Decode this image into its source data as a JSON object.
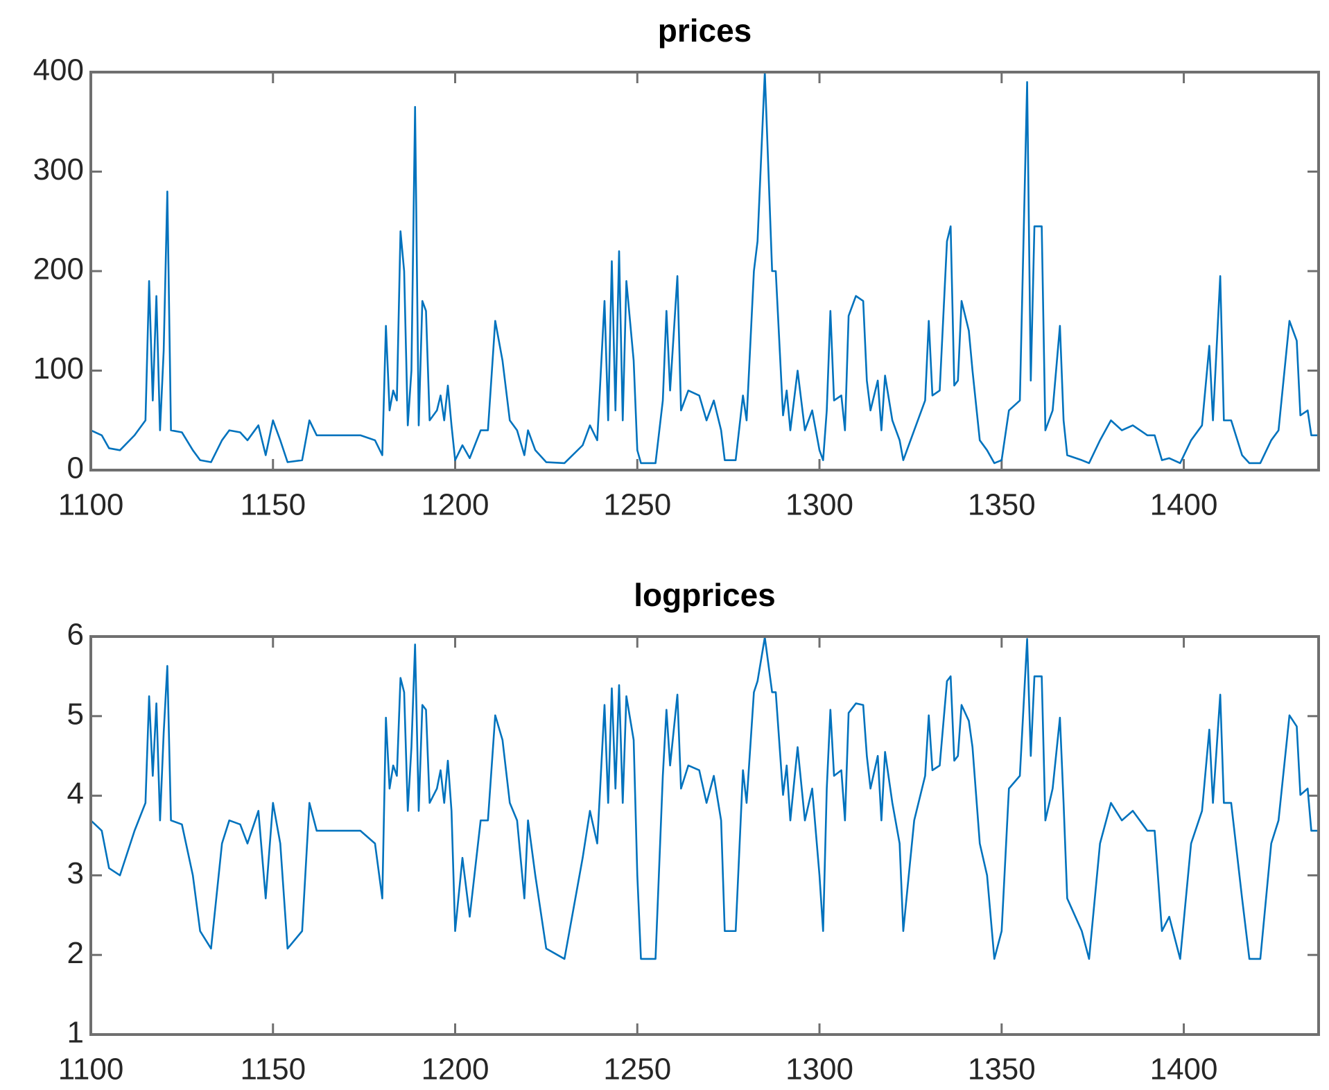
{
  "chart_data": [
    {
      "type": "line",
      "title": "prices",
      "x": [
        1100,
        1103,
        1105,
        1108,
        1112,
        1115,
        1116,
        1117,
        1118,
        1119,
        1120,
        1121,
        1122,
        1125,
        1128,
        1130,
        1133,
        1136,
        1138,
        1141,
        1143,
        1146,
        1148,
        1150,
        1152,
        1154,
        1158,
        1160,
        1162,
        1166,
        1170,
        1174,
        1178,
        1180,
        1181,
        1182,
        1183,
        1184,
        1185,
        1186,
        1187,
        1188,
        1189,
        1190,
        1191,
        1192,
        1193,
        1195,
        1196,
        1197,
        1198,
        1199,
        1200,
        1202,
        1204,
        1207,
        1209,
        1211,
        1213,
        1215,
        1217,
        1219,
        1220,
        1222,
        1225,
        1230,
        1235,
        1237,
        1239,
        1241,
        1242,
        1243,
        1244,
        1245,
        1246,
        1247,
        1249,
        1250,
        1251,
        1255,
        1257,
        1258,
        1259,
        1261,
        1262,
        1264,
        1267,
        1269,
        1271,
        1273,
        1274,
        1277,
        1279,
        1280,
        1282,
        1283,
        1285,
        1287,
        1288,
        1290,
        1291,
        1292,
        1294,
        1296,
        1298,
        1300,
        1301,
        1302,
        1303,
        1304,
        1306,
        1307,
        1308,
        1310,
        1312,
        1313,
        1314,
        1316,
        1317,
        1318,
        1320,
        1322,
        1323,
        1326,
        1329,
        1330,
        1331,
        1333,
        1335,
        1336,
        1337,
        1338,
        1339,
        1341,
        1342,
        1344,
        1346,
        1348,
        1350,
        1352,
        1355,
        1357,
        1358,
        1359,
        1361,
        1362,
        1364,
        1366,
        1367,
        1368,
        1372,
        1374,
        1377,
        1380,
        1383,
        1386,
        1390,
        1392,
        1394,
        1396,
        1399,
        1402,
        1405,
        1407,
        1408,
        1410,
        1411,
        1413,
        1416,
        1418,
        1421,
        1424,
        1426,
        1429,
        1431,
        1432,
        1434,
        1435,
        1437
      ],
      "series": [
        {
          "color": "#0072BD",
          "values": [
            40,
            35,
            22,
            20,
            35,
            50,
            190,
            70,
            175,
            40,
            120,
            280,
            40,
            38,
            20,
            10,
            8,
            30,
            40,
            38,
            30,
            45,
            15,
            50,
            30,
            8,
            10,
            50,
            35,
            35,
            35,
            35,
            30,
            15,
            145,
            60,
            80,
            70,
            240,
            200,
            45,
            100,
            365,
            45,
            170,
            160,
            50,
            60,
            75,
            50,
            85,
            45,
            10,
            25,
            12,
            40,
            40,
            150,
            110,
            50,
            40,
            15,
            40,
            20,
            8,
            7,
            25,
            45,
            30,
            170,
            50,
            210,
            60,
            220,
            50,
            190,
            110,
            20,
            7,
            7,
            70,
            160,
            80,
            195,
            60,
            80,
            75,
            50,
            70,
            40,
            10,
            10,
            75,
            50,
            200,
            230,
            400,
            200,
            200,
            55,
            80,
            40,
            100,
            40,
            60,
            20,
            10,
            60,
            160,
            70,
            75,
            40,
            155,
            175,
            170,
            90,
            60,
            90,
            40,
            95,
            50,
            30,
            10,
            40,
            70,
            150,
            75,
            80,
            230,
            245,
            85,
            90,
            170,
            140,
            100,
            30,
            20,
            7,
            10,
            60,
            70,
            390,
            90,
            245,
            245,
            40,
            60,
            145,
            50,
            15,
            10,
            7,
            30,
            50,
            40,
            45,
            35,
            35,
            10,
            12,
            7,
            30,
            45,
            125,
            50,
            195,
            50,
            50,
            15,
            7,
            7,
            30,
            40,
            150,
            130,
            55,
            60,
            35,
            35
          ]
        }
      ],
      "xlim": [
        1100,
        1437
      ],
      "xticks": [
        1100,
        1150,
        1200,
        1250,
        1300,
        1350,
        1400
      ],
      "ylim": [
        0,
        400
      ],
      "yticks": [
        0,
        100,
        200,
        300,
        400
      ],
      "grid": false
    },
    {
      "type": "line",
      "title": "logprices",
      "x": [
        1100,
        1103,
        1105,
        1108,
        1112,
        1115,
        1116,
        1117,
        1118,
        1119,
        1120,
        1121,
        1122,
        1125,
        1128,
        1130,
        1133,
        1136,
        1138,
        1141,
        1143,
        1146,
        1148,
        1150,
        1152,
        1154,
        1158,
        1160,
        1162,
        1166,
        1170,
        1174,
        1178,
        1180,
        1181,
        1182,
        1183,
        1184,
        1185,
        1186,
        1187,
        1188,
        1189,
        1190,
        1191,
        1192,
        1193,
        1195,
        1196,
        1197,
        1198,
        1199,
        1200,
        1202,
        1204,
        1207,
        1209,
        1211,
        1213,
        1215,
        1217,
        1219,
        1220,
        1222,
        1225,
        1230,
        1235,
        1237,
        1239,
        1241,
        1242,
        1243,
        1244,
        1245,
        1246,
        1247,
        1249,
        1250,
        1251,
        1255,
        1257,
        1258,
        1259,
        1261,
        1262,
        1264,
        1267,
        1269,
        1271,
        1273,
        1274,
        1277,
        1279,
        1280,
        1282,
        1283,
        1285,
        1287,
        1288,
        1290,
        1291,
        1292,
        1294,
        1296,
        1298,
        1300,
        1301,
        1302,
        1303,
        1304,
        1306,
        1307,
        1308,
        1310,
        1312,
        1313,
        1314,
        1316,
        1317,
        1318,
        1320,
        1322,
        1323,
        1326,
        1329,
        1330,
        1331,
        1333,
        1335,
        1336,
        1337,
        1338,
        1339,
        1341,
        1342,
        1344,
        1346,
        1348,
        1350,
        1352,
        1355,
        1357,
        1358,
        1359,
        1361,
        1362,
        1364,
        1366,
        1367,
        1368,
        1372,
        1374,
        1377,
        1380,
        1383,
        1386,
        1390,
        1392,
        1394,
        1396,
        1399,
        1402,
        1405,
        1407,
        1408,
        1410,
        1411,
        1413,
        1416,
        1418,
        1421,
        1424,
        1426,
        1429,
        1431,
        1432,
        1434,
        1435,
        1437
      ],
      "series": [
        {
          "color": "#0072BD",
          "values": [
            3.69,
            3.56,
            3.09,
            3.0,
            3.56,
            3.91,
            5.25,
            4.25,
            5.16,
            3.69,
            4.79,
            5.63,
            3.69,
            3.64,
            3.0,
            2.3,
            2.08,
            3.4,
            3.69,
            3.64,
            3.4,
            3.81,
            2.71,
            3.91,
            3.4,
            2.08,
            2.3,
            3.91,
            3.56,
            3.56,
            3.56,
            3.56,
            3.4,
            2.71,
            4.98,
            4.09,
            4.38,
            4.25,
            5.48,
            5.3,
            3.81,
            4.61,
            5.9,
            3.81,
            5.14,
            5.08,
            3.91,
            4.09,
            4.32,
            3.91,
            4.44,
            3.81,
            2.3,
            3.22,
            2.48,
            3.69,
            3.69,
            5.01,
            4.7,
            3.91,
            3.69,
            2.71,
            3.69,
            3.0,
            2.08,
            1.95,
            3.22,
            3.81,
            3.4,
            5.14,
            3.91,
            5.35,
            4.09,
            5.39,
            3.91,
            5.25,
            4.7,
            3.0,
            1.95,
            1.95,
            4.25,
            5.08,
            4.38,
            5.27,
            4.09,
            4.38,
            4.32,
            3.91,
            4.25,
            3.69,
            2.3,
            2.3,
            4.32,
            3.91,
            5.3,
            5.44,
            5.99,
            5.3,
            5.3,
            4.01,
            4.38,
            3.69,
            4.61,
            3.69,
            4.09,
            3.0,
            2.3,
            4.09,
            5.08,
            4.25,
            4.32,
            3.69,
            5.04,
            5.16,
            5.14,
            4.5,
            4.09,
            4.5,
            3.69,
            4.55,
            3.91,
            3.4,
            2.3,
            3.69,
            4.25,
            5.01,
            4.32,
            4.38,
            5.44,
            5.5,
            4.44,
            4.5,
            5.14,
            4.94,
            4.61,
            3.4,
            3.0,
            1.95,
            2.3,
            4.09,
            4.25,
            5.97,
            4.5,
            5.5,
            5.5,
            3.69,
            4.09,
            4.98,
            3.91,
            2.71,
            2.3,
            1.95,
            3.4,
            3.91,
            3.69,
            3.81,
            3.56,
            3.56,
            2.3,
            2.48,
            1.95,
            3.4,
            3.81,
            4.83,
            3.91,
            5.27,
            3.91,
            3.91,
            2.71,
            1.95,
            1.95,
            3.4,
            3.69,
            5.01,
            4.87,
            4.01,
            4.09,
            3.56,
            3.56
          ]
        }
      ],
      "xlim": [
        1100,
        1437
      ],
      "xticks": [
        1100,
        1150,
        1200,
        1250,
        1300,
        1350,
        1400
      ],
      "ylim": [
        1,
        6
      ],
      "yticks": [
        1,
        2,
        3,
        4,
        5,
        6
      ],
      "grid": false
    }
  ]
}
